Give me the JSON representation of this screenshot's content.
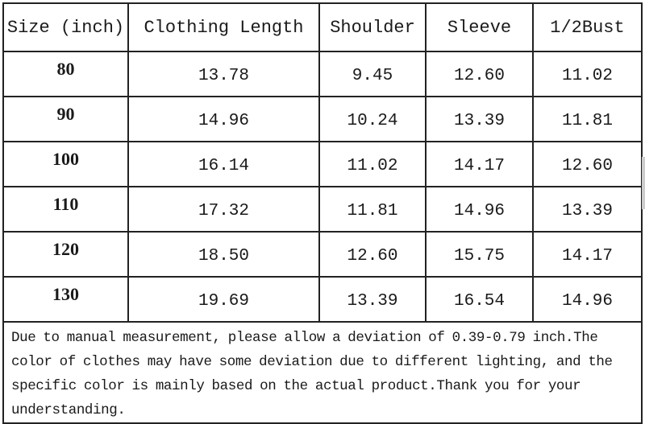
{
  "table": {
    "headers": [
      "Size (inch)",
      "Clothing Length",
      "Shoulder",
      "Sleeve",
      "1/2Bust"
    ],
    "rows": [
      [
        "80",
        "13.78",
        "9.45",
        "12.60",
        "11.02"
      ],
      [
        "90",
        "14.96",
        "10.24",
        "13.39",
        "11.81"
      ],
      [
        "100",
        "16.14",
        "11.02",
        "14.17",
        "12.60"
      ],
      [
        "110",
        "17.32",
        "11.81",
        "14.96",
        "13.39"
      ],
      [
        "120",
        "18.50",
        "12.60",
        "15.75",
        "14.17"
      ],
      [
        "130",
        "19.69",
        "13.39",
        "16.54",
        "14.96"
      ]
    ],
    "note": "Due to manual measurement, please allow a deviation of 0.39-0.79 inch.The color of clothes may have some deviation due to different lighting, and the specific color is mainly based on the actual product.Thank you for your understanding."
  }
}
